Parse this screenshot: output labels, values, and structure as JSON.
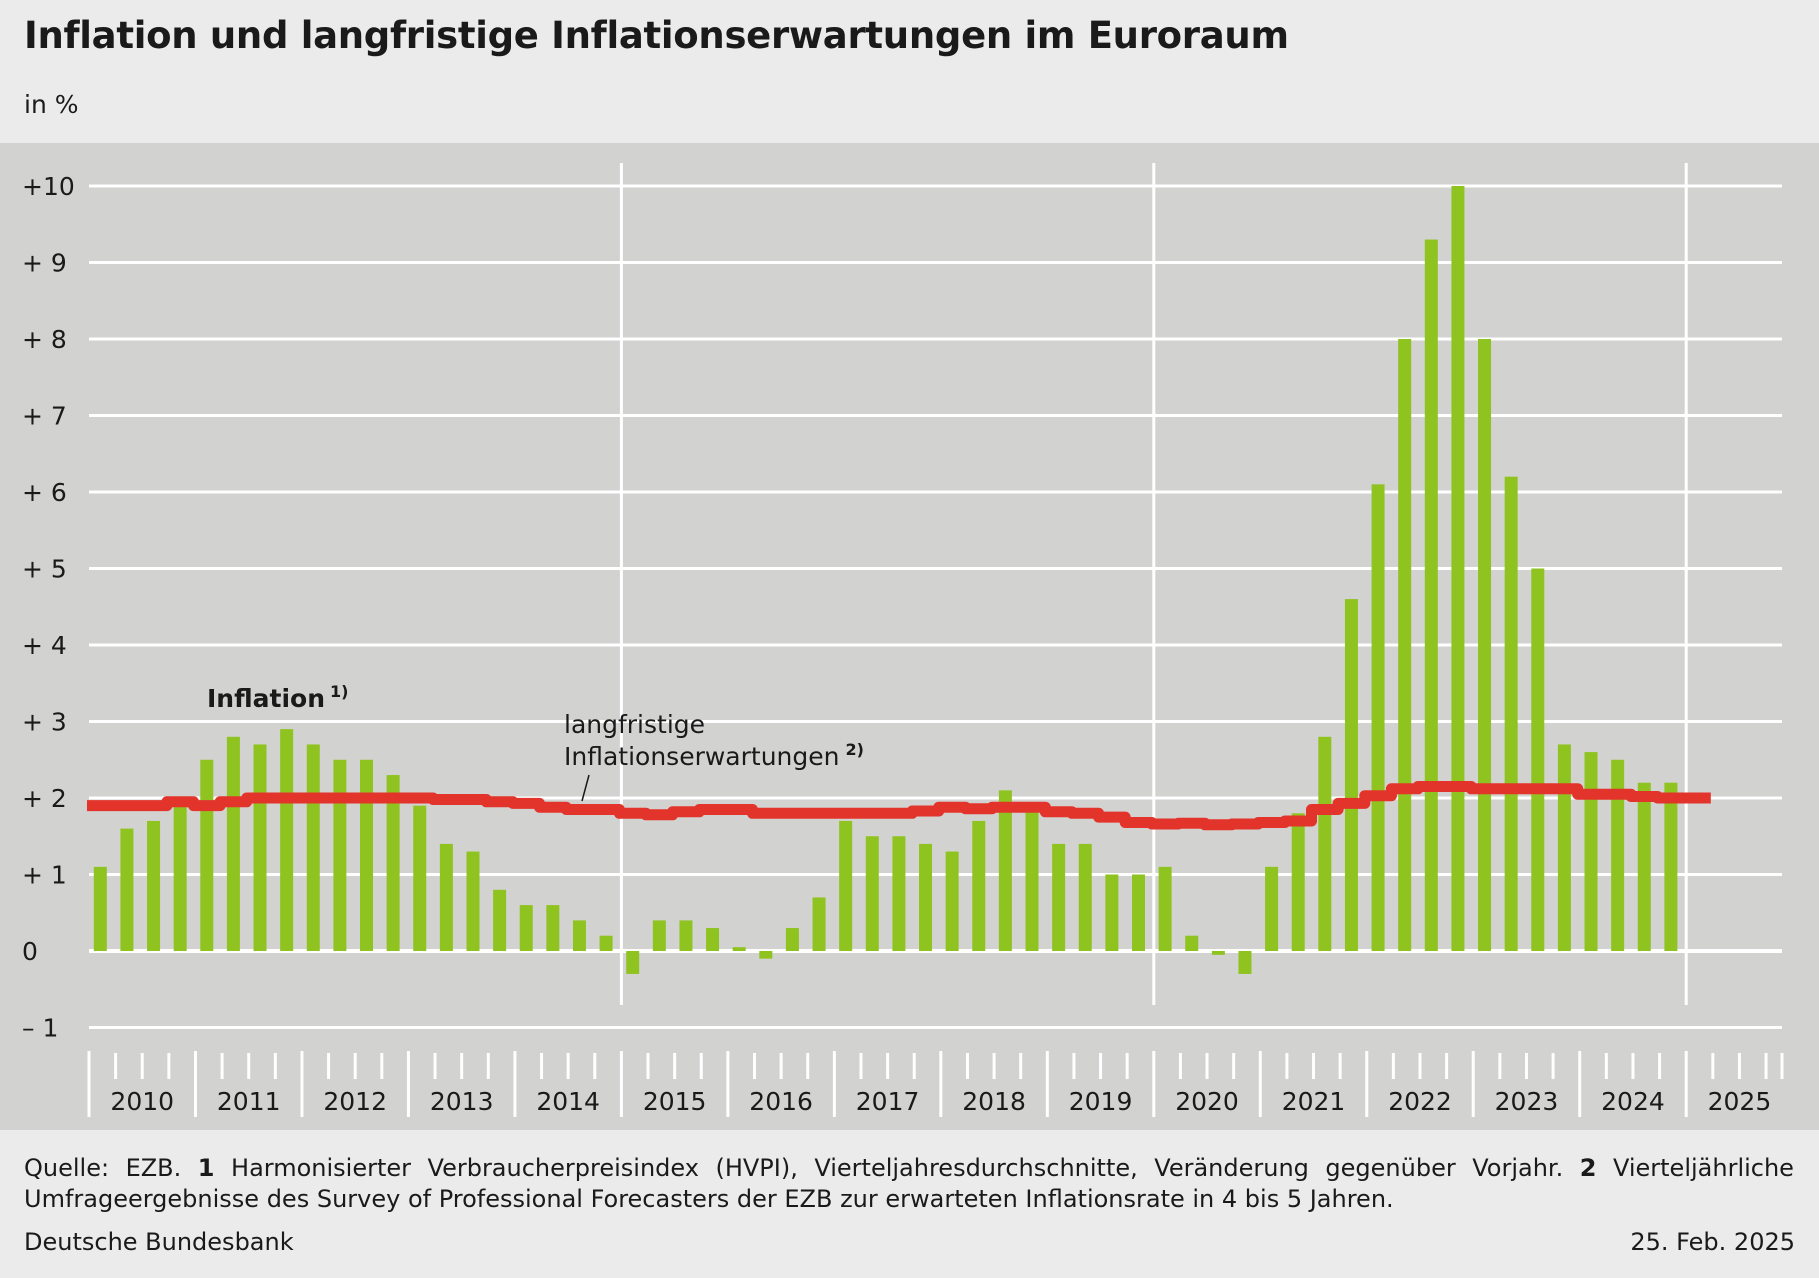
{
  "header": {
    "title": "Inflation und langfristige Inflationserwartungen im Euroraum",
    "unit": "in %"
  },
  "footer": {
    "source_label": "Quelle: EZB.",
    "note1_num": "1",
    "note1_text": "Harmonisierter Verbraucherpreisindex (HVPI), Vierteljahresdurchschnitte, Veränderung gegenüber Vorjahr.",
    "note2_num": "2",
    "note2_text": "Vierteljährliche Umfrageergebnisse des Survey of Professional Forecasters der EZB zur erwarteten Inflationsrate in 4 bis 5 Jahren.",
    "org": "Deutsche Bundesbank",
    "date": "25. Feb. 2025"
  },
  "colors": {
    "plot_background": "#d2d2d1",
    "grid": "#ffffff",
    "inflation_bars": "#8fc31f",
    "expectations_line": "#e2342b"
  },
  "chart_data": {
    "type": "bar",
    "x_axis": {
      "years": [
        "2010",
        "2011",
        "2012",
        "2013",
        "2014",
        "2015",
        "2016",
        "2017",
        "2018",
        "2019",
        "2020",
        "2021",
        "2022",
        "2023",
        "2024",
        "2025"
      ],
      "quarters_per_year": 4,
      "major_gridlines_after_year": [
        "2014",
        "2019",
        "2024"
      ]
    },
    "y_axis": {
      "ticks": [
        -1,
        0,
        1,
        2,
        3,
        4,
        5,
        6,
        7,
        8,
        9,
        10
      ],
      "tick_labels": [
        "–  1",
        "0",
        "+  1",
        "+  2",
        "+  3",
        "+  4",
        "+  5",
        "+  6",
        "+  7",
        "+  8",
        "+  9",
        "+10"
      ],
      "ylim": [
        -1,
        10
      ],
      "grid": true
    },
    "series": [
      {
        "name": "Inflation",
        "footnote": "1)",
        "kind": "bar",
        "start": "2010 Q1",
        "values": [
          1.1,
          1.6,
          1.7,
          2.0,
          2.5,
          2.8,
          2.7,
          2.9,
          2.7,
          2.5,
          2.5,
          2.3,
          1.9,
          1.4,
          1.3,
          0.8,
          0.6,
          0.6,
          0.4,
          0.2,
          -0.3,
          0.4,
          0.4,
          0.3,
          0.05,
          -0.1,
          0.3,
          0.7,
          1.7,
          1.5,
          1.5,
          1.4,
          1.3,
          1.7,
          2.1,
          1.9,
          1.4,
          1.4,
          1.0,
          1.0,
          1.1,
          0.2,
          -0.05,
          -0.3,
          1.1,
          1.8,
          2.8,
          4.6,
          6.1,
          8.0,
          9.3,
          10.0,
          8.0,
          6.2,
          5.0,
          2.7,
          2.6,
          2.5,
          2.2,
          2.2
        ]
      },
      {
        "name": "langfristige Inflationserwartungen",
        "footnote": "2)",
        "kind": "step-line",
        "start": "2010 Q1",
        "values": [
          1.9,
          1.9,
          1.9,
          1.95,
          1.9,
          1.95,
          2.0,
          2.0,
          2.0,
          2.0,
          2.0,
          2.0,
          2.0,
          1.98,
          1.98,
          1.95,
          1.93,
          1.88,
          1.85,
          1.85,
          1.8,
          1.78,
          1.82,
          1.85,
          1.85,
          1.8,
          1.8,
          1.8,
          1.8,
          1.8,
          1.8,
          1.83,
          1.88,
          1.86,
          1.88,
          1.88,
          1.82,
          1.8,
          1.75,
          1.68,
          1.66,
          1.67,
          1.65,
          1.66,
          1.68,
          1.7,
          1.85,
          1.93,
          2.03,
          2.12,
          2.15,
          2.15,
          2.12,
          2.12,
          2.12,
          2.12,
          2.05,
          2.05,
          2.02,
          2.0,
          2.0
        ]
      }
    ],
    "annotations": {
      "inflation_label": "Inflation",
      "inflation_footnote": "1)",
      "expectations_label_line1": "langfristige",
      "expectations_label_line2": "Inflationserwartungen",
      "expectations_footnote": "2)"
    }
  }
}
